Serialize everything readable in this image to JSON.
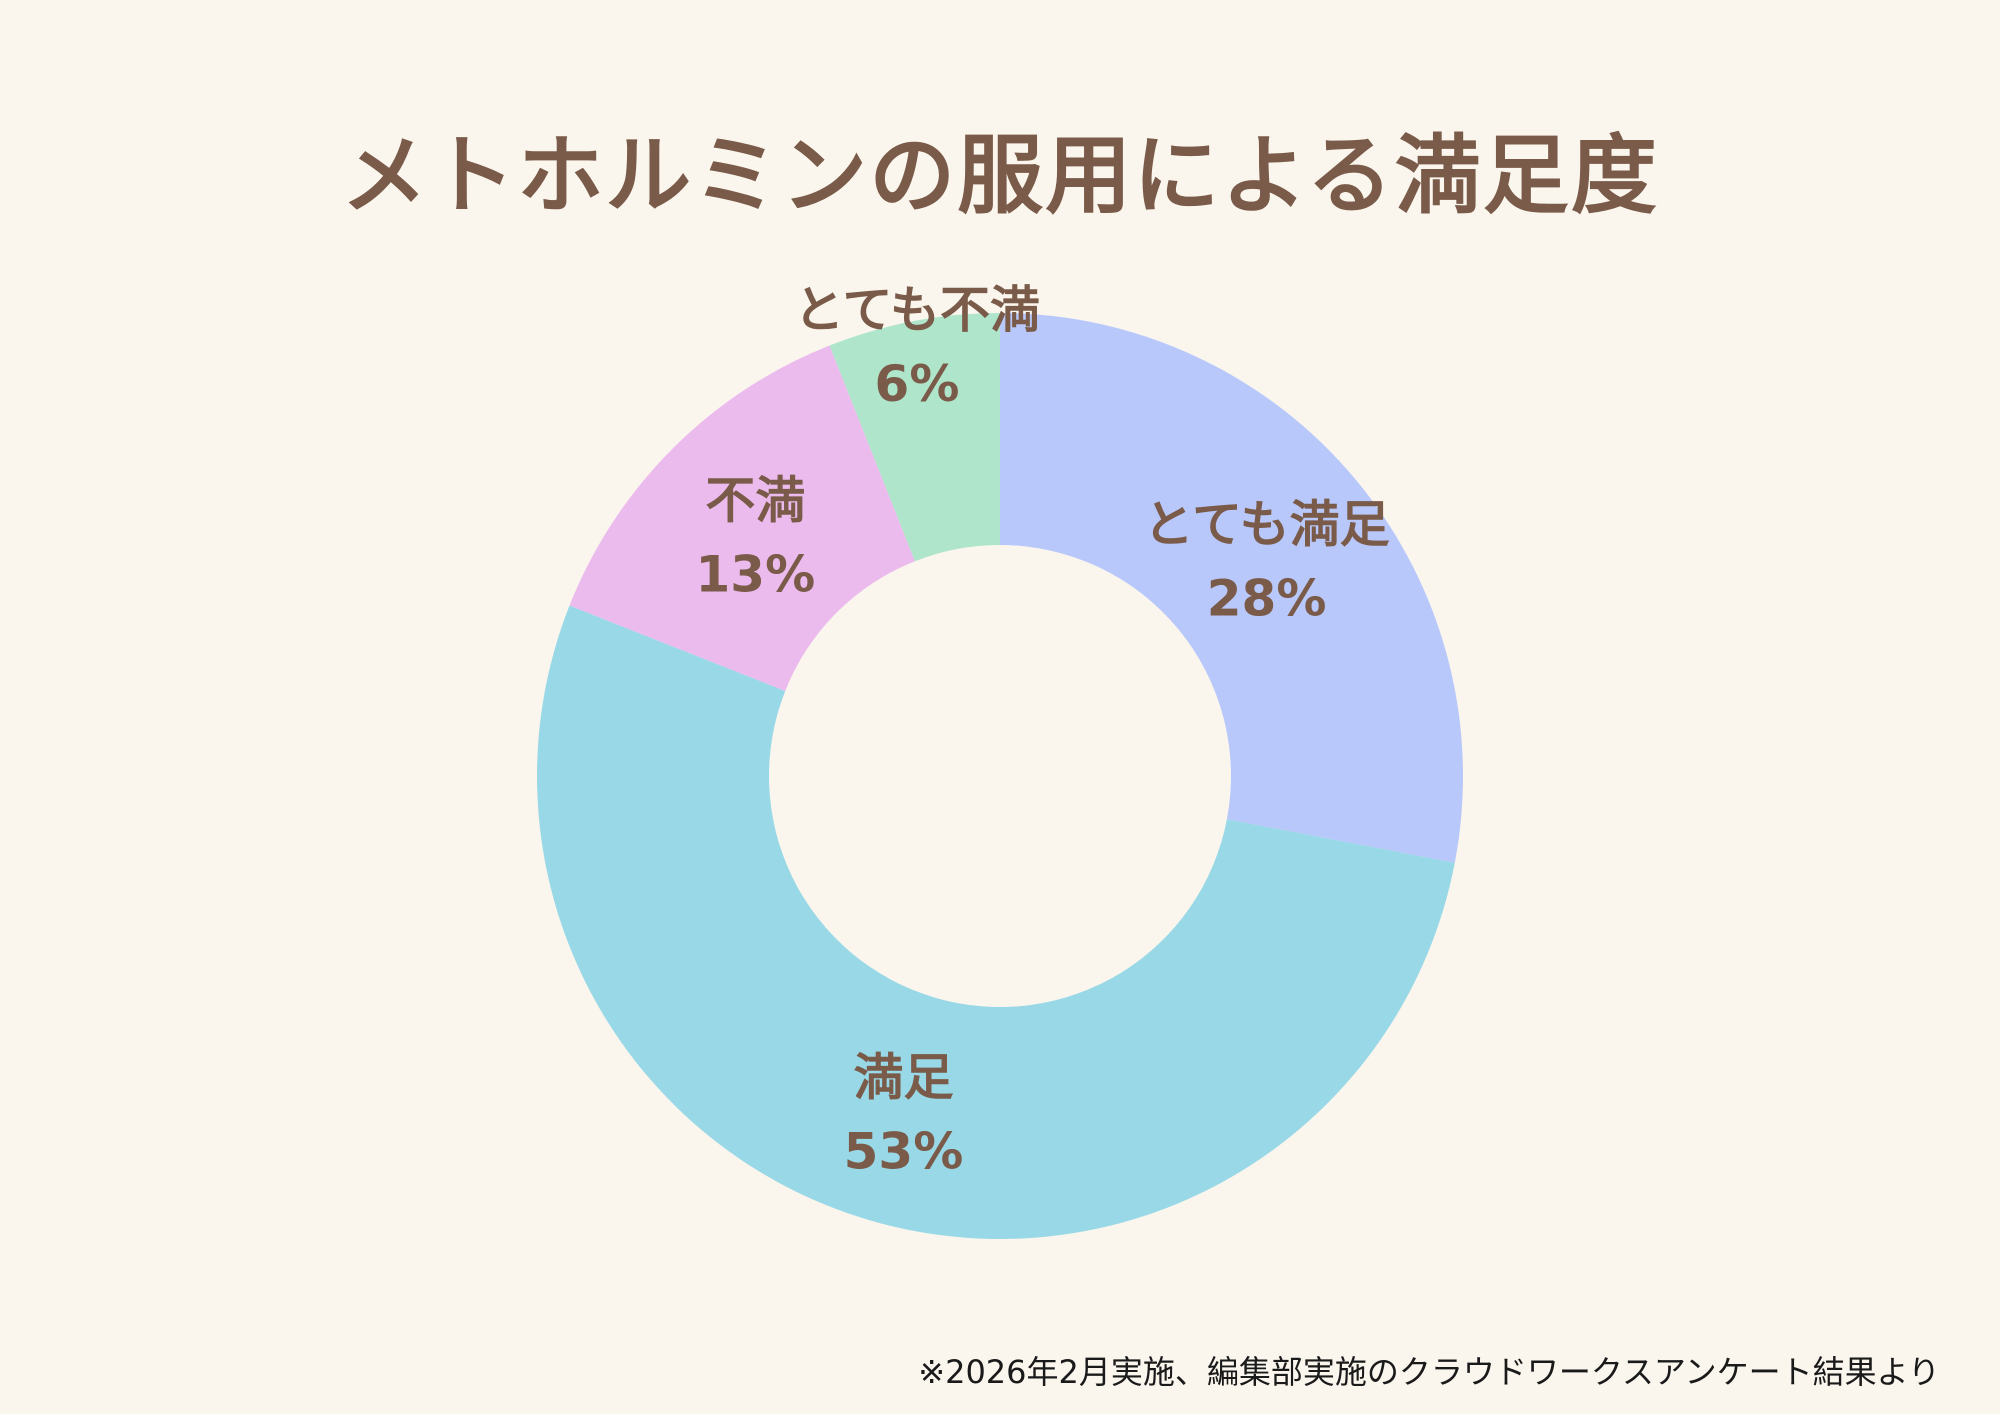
{
  "title": "メトホルミンの服用による満足度",
  "footnote": "※2026年2月実施、編集部実施のクラウドワークスアンケート結果より",
  "chart_data": {
    "type": "pie",
    "style": "donut",
    "start": "12 o'clock, clockwise",
    "slices": [
      {
        "label": "とても満足",
        "value": 28,
        "value_label": "28%",
        "color": "#b9c8fa"
      },
      {
        "label": "満足",
        "value": 53,
        "value_label": "53%",
        "color": "#99d8e7"
      },
      {
        "label": "不満",
        "value": 13,
        "value_label": "13%",
        "color": "#ecbbee"
      },
      {
        "label": "とても不満",
        "value": 6,
        "value_label": "6%",
        "color": "#aee5cb"
      }
    ],
    "label_color": "#7a5a48",
    "background": "#faf6ee"
  }
}
